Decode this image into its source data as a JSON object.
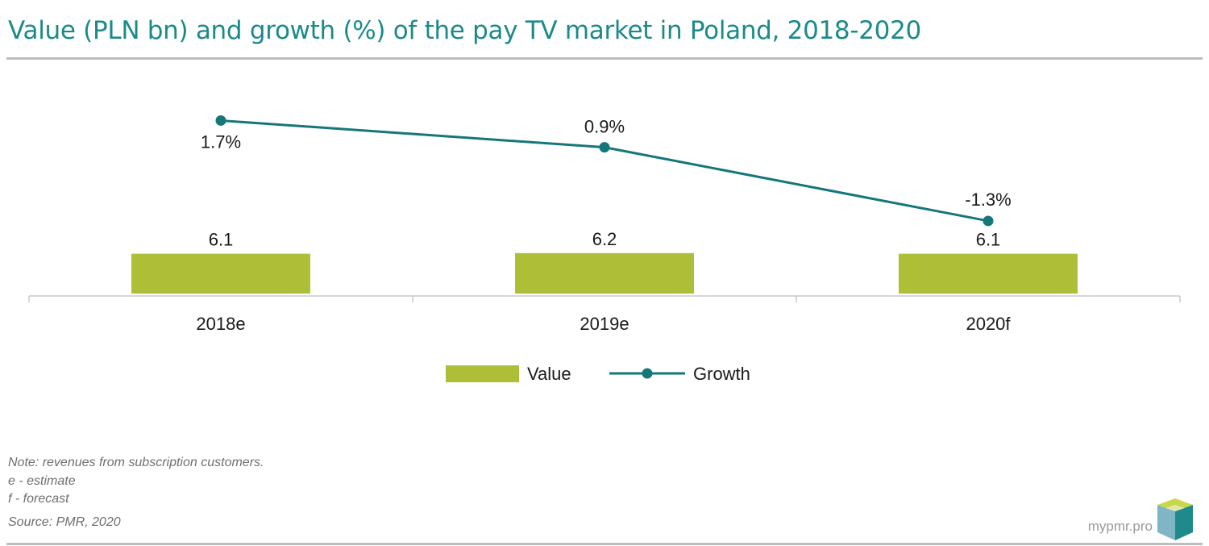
{
  "title": "Value (PLN bn) and growth (%) of the pay TV market in Poland, 2018-2020",
  "chart_data": {
    "type": "bar",
    "categories": [
      "2018e",
      "2019e",
      "2020f"
    ],
    "series": [
      {
        "name": "Value",
        "kind": "bar",
        "values": [
          6.1,
          6.2,
          6.1
        ],
        "labels": [
          "6.1",
          "6.2",
          "6.1"
        ],
        "color": "#aebf37"
      },
      {
        "name": "Growth",
        "kind": "line",
        "values": [
          1.7,
          0.9,
          -1.3
        ],
        "labels": [
          "1.7%",
          "0.9%",
          "-1.3%"
        ],
        "color": "#15777a"
      }
    ],
    "legend_position": "bottom-center",
    "grid": false
  },
  "notes": {
    "note": "Note: revenues from subscription customers.",
    "e": "e - estimate",
    "f": "f - forecast",
    "source": "Source: PMR, 2020"
  },
  "brand": "mypmr.pro"
}
